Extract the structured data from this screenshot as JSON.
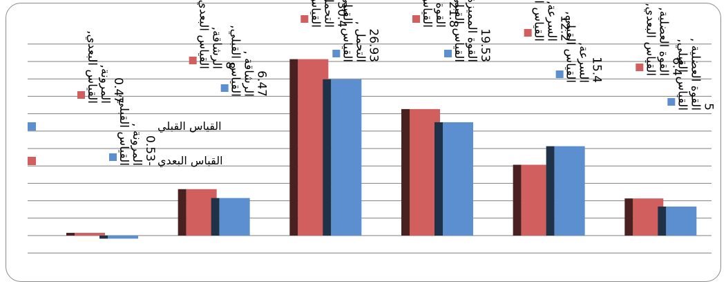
{
  "chart_data": {
    "type": "bar",
    "categories": [
      "المرونة",
      "الرشاقة",
      "التحمل",
      "القوة المميزة بالسرعة",
      "السرعة",
      "القوة العضلية"
    ],
    "series": [
      {
        "name": "القياس القبلي",
        "values": [
          -0.53,
          6.47,
          26.93,
          19.53,
          15.4,
          5
        ],
        "color": "#5b8fcf"
      },
      {
        "name": "القياس البعدي",
        "values": [
          0.47,
          8,
          30.4,
          21.8,
          12.2,
          6.4
        ],
        "color": "#d15f5d"
      }
    ],
    "data_labels": [
      {
        "series": "القياس البعدي",
        "category": "المرونة",
        "lines": [
          "القياس البعدي,",
          "المرونة,",
          "0.47"
        ]
      },
      {
        "series": "القياس القبلي",
        "category": "المرونة",
        "lines": [
          "القياس القبلي,",
          "المرونة ,",
          "-0.53"
        ]
      },
      {
        "series": "القياس البعدي",
        "category": "الرشاقة",
        "lines": [
          "القياس البعدي,",
          "الرشاقة,",
          "8"
        ]
      },
      {
        "series": "القياس القبلي",
        "category": "الرشاقة",
        "lines": [
          "القياس القبلي,",
          "الرشاقة ,",
          "6.47"
        ]
      },
      {
        "series": "القياس البعدي",
        "category": "التحمل",
        "lines": [
          "القياس البعدي,",
          "التحمل ,",
          "30.4"
        ]
      },
      {
        "series": "القياس القبلي",
        "category": "التحمل",
        "lines": [
          "القياس القبلي,",
          "التحمل ,",
          "26.93"
        ]
      },
      {
        "series": "القياس البعدي",
        "category": "القوة المميزة بالسرعة",
        "lines": [
          "القياس البعدي,",
          "القوة المميزة بالسرعة ,",
          "21.8"
        ]
      },
      {
        "series": "القياس القبلي",
        "category": "القوة المميزة بالسرعة",
        "lines": [
          "القياس القبلي,",
          "القوة المميزة بالسرعة ,",
          "19.53"
        ]
      },
      {
        "series": "القياس البعدي",
        "category": "السرعة",
        "lines": [
          "القياس البعدي,",
          "السرعة,",
          "12.2"
        ]
      },
      {
        "series": "القياس القبلي",
        "category": "السرعة",
        "lines": [
          "القياس القبلي,",
          "السرعة,",
          "15.4"
        ]
      },
      {
        "series": "القياس البعدي",
        "category": "القوة العضلية",
        "lines": [
          "القياس البعدي,",
          "القوة العضلية,",
          "6.4"
        ]
      },
      {
        "series": "القياس القبلي",
        "category": "القوة العضلية",
        "lines": [
          "القياس القبلي,",
          "القوة العضلية ,",
          "5"
        ]
      }
    ],
    "ylim": [
      -2,
      34
    ],
    "grid": true,
    "legend": "left",
    "style": "3d-clustered-column"
  }
}
